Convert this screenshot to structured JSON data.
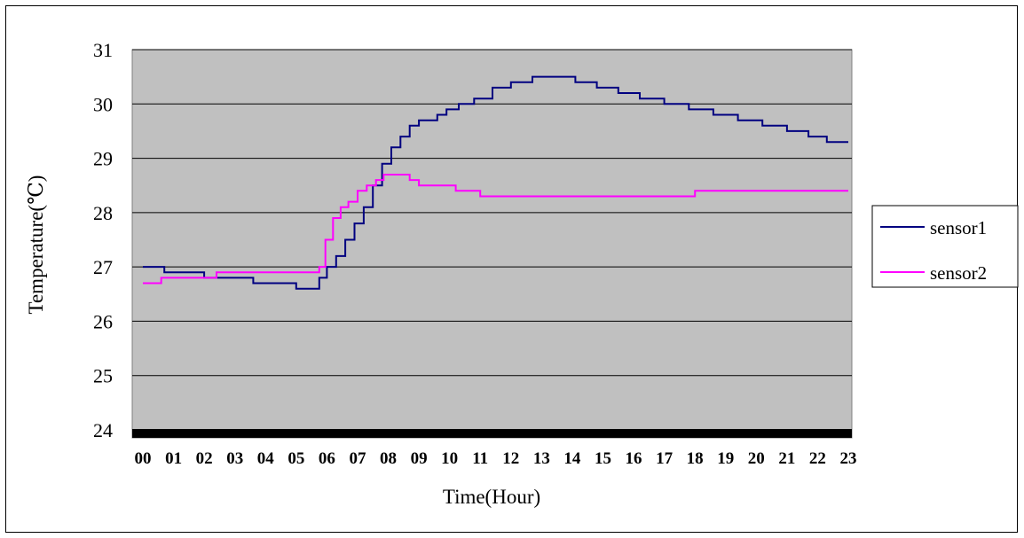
{
  "chart_data": {
    "type": "line",
    "title": "",
    "xlabel": "Time(Hour)",
    "ylabel": "Temperature(℃)",
    "ylim": [
      24,
      31
    ],
    "xlim": [
      0,
      23
    ],
    "y_ticks": [
      "24",
      "25",
      "26",
      "27",
      "28",
      "29",
      "30",
      "31"
    ],
    "x_ticks": [
      "00",
      "01",
      "02",
      "03",
      "04",
      "05",
      "06",
      "07",
      "08",
      "09",
      "10",
      "11",
      "12",
      "13",
      "14",
      "15",
      "16",
      "17",
      "18",
      "19",
      "20",
      "21",
      "22",
      "23"
    ],
    "grid": true,
    "plot_background": "#c0c0c0",
    "legend_position": "right",
    "series": [
      {
        "name": "sensor1",
        "color": "#000080",
        "x": [
          0.0,
          0.7,
          0.7,
          2.0,
          2.0,
          3.6,
          3.6,
          5.0,
          5.0,
          5.75,
          5.75,
          6.0,
          6.3,
          6.6,
          6.9,
          7.2,
          7.5,
          7.8,
          8.1,
          8.4,
          8.7,
          9.0,
          9.3,
          9.6,
          9.9,
          10.3,
          10.8,
          11.4,
          12.0,
          12.7,
          13.4,
          14.1,
          14.8,
          15.5,
          16.2,
          17.0,
          17.8,
          18.6,
          19.4,
          20.2,
          21.0,
          21.7,
          22.3,
          22.9,
          23.0
        ],
        "y": [
          27.0,
          27.0,
          26.9,
          26.9,
          26.8,
          26.8,
          26.7,
          26.7,
          26.6,
          26.6,
          26.8,
          27.0,
          27.2,
          27.5,
          27.8,
          28.1,
          28.5,
          28.9,
          29.2,
          29.4,
          29.6,
          29.7,
          29.7,
          29.8,
          29.9,
          30.0,
          30.1,
          30.3,
          30.4,
          30.5,
          30.5,
          30.4,
          30.3,
          30.2,
          30.1,
          30.0,
          29.9,
          29.8,
          29.7,
          29.6,
          29.5,
          29.4,
          29.3,
          29.3,
          29.3
        ]
      },
      {
        "name": "sensor2",
        "color": "#ff00ff",
        "x": [
          0.0,
          0.6,
          0.6,
          2.4,
          2.4,
          5.75,
          5.75,
          5.95,
          6.2,
          6.45,
          6.7,
          7.0,
          7.3,
          7.6,
          7.85,
          8.1,
          8.4,
          8.7,
          9.0,
          9.5,
          10.2,
          11.0,
          11.5,
          14.0,
          16.0,
          18.0,
          19.0,
          20.0,
          22.0,
          23.0
        ],
        "y": [
          26.7,
          26.7,
          26.8,
          26.8,
          26.9,
          26.9,
          27.0,
          27.5,
          27.9,
          28.1,
          28.2,
          28.4,
          28.5,
          28.6,
          28.7,
          28.7,
          28.7,
          28.6,
          28.5,
          28.5,
          28.4,
          28.3,
          28.3,
          28.3,
          28.3,
          28.4,
          28.4,
          28.4,
          28.4,
          28.4
        ]
      }
    ]
  }
}
